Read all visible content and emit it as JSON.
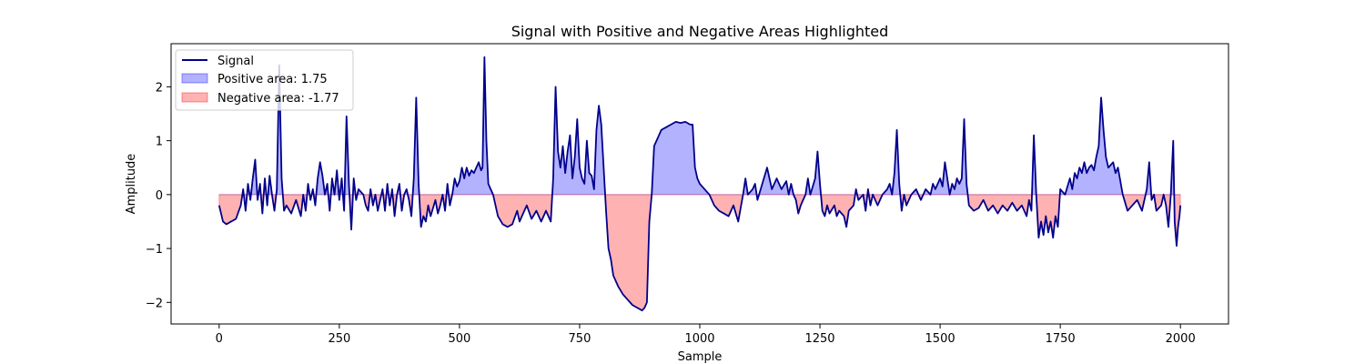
{
  "chart_data": {
    "type": "line",
    "title": "Signal with Positive and Negative Areas Highlighted",
    "xlabel": "Sample",
    "ylabel": "Amplitude",
    "xlim": [
      -100,
      2100
    ],
    "ylim": [
      -2.4,
      2.8
    ],
    "x_ticks": [
      0,
      250,
      500,
      750,
      1000,
      1250,
      1500,
      1750,
      2000
    ],
    "y_ticks": [
      -2,
      -1,
      0,
      1,
      2
    ],
    "grid": false,
    "legend_position": "top-left",
    "legend": [
      {
        "label": "Signal",
        "kind": "line",
        "color": "#00008b"
      },
      {
        "label": "Positive area: 1.75",
        "kind": "patch",
        "color": "#0000ff"
      },
      {
        "label": "Negative area: -1.77",
        "kind": "patch",
        "color": "#ff0000"
      }
    ],
    "series": [
      {
        "name": "Signal",
        "color": "#00008b",
        "points": [
          [
            0,
            -0.2
          ],
          [
            8,
            -0.5
          ],
          [
            15,
            -0.55
          ],
          [
            25,
            -0.5
          ],
          [
            35,
            -0.45
          ],
          [
            45,
            -0.2
          ],
          [
            50,
            0.1
          ],
          [
            55,
            -0.3
          ],
          [
            60,
            0.2
          ],
          [
            65,
            -0.1
          ],
          [
            70,
            0.3
          ],
          [
            75,
            0.65
          ],
          [
            80,
            -0.1
          ],
          [
            85,
            0.2
          ],
          [
            90,
            -0.35
          ],
          [
            95,
            0.3
          ],
          [
            100,
            -0.2
          ],
          [
            105,
            0.35
          ],
          [
            110,
            0.0
          ],
          [
            115,
            -0.3
          ],
          [
            120,
            0.1
          ],
          [
            125,
            2.4
          ],
          [
            130,
            0.3
          ],
          [
            135,
            -0.3
          ],
          [
            140,
            -0.2
          ],
          [
            150,
            -0.35
          ],
          [
            160,
            -0.1
          ],
          [
            170,
            -0.4
          ],
          [
            175,
            0.0
          ],
          [
            180,
            -0.3
          ],
          [
            185,
            0.2
          ],
          [
            190,
            -0.1
          ],
          [
            195,
            0.1
          ],
          [
            200,
            -0.2
          ],
          [
            205,
            0.3
          ],
          [
            210,
            0.6
          ],
          [
            215,
            0.35
          ],
          [
            220,
            0.0
          ],
          [
            225,
            0.2
          ],
          [
            230,
            -0.3
          ],
          [
            235,
            0.3
          ],
          [
            240,
            0.0
          ],
          [
            245,
            0.45
          ],
          [
            250,
            -0.1
          ],
          [
            255,
            0.3
          ],
          [
            260,
            -0.3
          ],
          [
            265,
            1.45
          ],
          [
            270,
            0.2
          ],
          [
            275,
            -0.65
          ],
          [
            280,
            0.3
          ],
          [
            285,
            -0.1
          ],
          [
            290,
            0.1
          ],
          [
            300,
            0.0
          ],
          [
            305,
            -0.2
          ],
          [
            310,
            -0.3
          ],
          [
            315,
            0.1
          ],
          [
            320,
            -0.2
          ],
          [
            325,
            0.0
          ],
          [
            330,
            -0.3
          ],
          [
            335,
            -0.1
          ],
          [
            340,
            0.1
          ],
          [
            345,
            -0.3
          ],
          [
            350,
            0.2
          ],
          [
            355,
            -0.2
          ],
          [
            360,
            0.1
          ],
          [
            365,
            -0.4
          ],
          [
            370,
            0.0
          ],
          [
            375,
            0.2
          ],
          [
            380,
            -0.3
          ],
          [
            385,
            0.0
          ],
          [
            390,
            0.1
          ],
          [
            395,
            -0.1
          ],
          [
            400,
            -0.4
          ],
          [
            405,
            0.3
          ],
          [
            410,
            1.8
          ],
          [
            415,
            0.2
          ],
          [
            420,
            -0.6
          ],
          [
            425,
            -0.4
          ],
          [
            430,
            -0.5
          ],
          [
            435,
            -0.2
          ],
          [
            440,
            -0.4
          ],
          [
            450,
            -0.1
          ],
          [
            455,
            -0.35
          ],
          [
            460,
            -0.2
          ],
          [
            465,
            0.0
          ],
          [
            470,
            -0.3
          ],
          [
            475,
            0.2
          ],
          [
            480,
            -0.2
          ],
          [
            485,
            0.0
          ],
          [
            490,
            0.3
          ],
          [
            495,
            0.15
          ],
          [
            500,
            0.25
          ],
          [
            505,
            0.5
          ],
          [
            510,
            0.3
          ],
          [
            515,
            0.5
          ],
          [
            520,
            0.35
          ],
          [
            525,
            0.45
          ],
          [
            530,
            0.4
          ],
          [
            535,
            0.5
          ],
          [
            540,
            0.6
          ],
          [
            545,
            0.45
          ],
          [
            548,
            0.5
          ],
          [
            552,
            2.55
          ],
          [
            556,
            1.0
          ],
          [
            560,
            0.2
          ],
          [
            570,
            0.0
          ],
          [
            580,
            -0.4
          ],
          [
            590,
            -0.55
          ],
          [
            600,
            -0.6
          ],
          [
            610,
            -0.55
          ],
          [
            620,
            -0.3
          ],
          [
            625,
            -0.5
          ],
          [
            630,
            -0.4
          ],
          [
            640,
            -0.2
          ],
          [
            650,
            -0.45
          ],
          [
            660,
            -0.3
          ],
          [
            670,
            -0.5
          ],
          [
            680,
            -0.3
          ],
          [
            690,
            -0.5
          ],
          [
            695,
            0.3
          ],
          [
            700,
            2.0
          ],
          [
            705,
            0.8
          ],
          [
            710,
            0.5
          ],
          [
            715,
            0.9
          ],
          [
            720,
            0.4
          ],
          [
            725,
            0.8
          ],
          [
            730,
            1.1
          ],
          [
            735,
            0.3
          ],
          [
            740,
            0.7
          ],
          [
            745,
            1.4
          ],
          [
            750,
            0.5
          ],
          [
            755,
            0.3
          ],
          [
            760,
            0.2
          ],
          [
            765,
            1.0
          ],
          [
            770,
            0.4
          ],
          [
            775,
            0.35
          ],
          [
            780,
            0.1
          ],
          [
            785,
            1.2
          ],
          [
            790,
            1.65
          ],
          [
            795,
            1.3
          ],
          [
            800,
            0.5
          ],
          [
            805,
            -0.3
          ],
          [
            810,
            -1.0
          ],
          [
            815,
            -1.2
          ],
          [
            820,
            -1.5
          ],
          [
            830,
            -1.7
          ],
          [
            840,
            -1.85
          ],
          [
            850,
            -1.95
          ],
          [
            860,
            -2.05
          ],
          [
            870,
            -2.1
          ],
          [
            880,
            -2.15
          ],
          [
            885,
            -2.1
          ],
          [
            890,
            -2.0
          ],
          [
            895,
            -0.5
          ],
          [
            900,
            0.0
          ],
          [
            905,
            0.9
          ],
          [
            910,
            1.0
          ],
          [
            915,
            1.1
          ],
          [
            920,
            1.2
          ],
          [
            930,
            1.25
          ],
          [
            940,
            1.3
          ],
          [
            950,
            1.35
          ],
          [
            960,
            1.33
          ],
          [
            970,
            1.35
          ],
          [
            980,
            1.3
          ],
          [
            985,
            1.3
          ],
          [
            990,
            0.5
          ],
          [
            995,
            0.3
          ],
          [
            1000,
            0.2
          ],
          [
            1010,
            0.1
          ],
          [
            1020,
            0.0
          ],
          [
            1030,
            -0.2
          ],
          [
            1040,
            -0.3
          ],
          [
            1050,
            -0.35
          ],
          [
            1060,
            -0.4
          ],
          [
            1065,
            -0.3
          ],
          [
            1070,
            -0.2
          ],
          [
            1080,
            -0.5
          ],
          [
            1090,
            0.0
          ],
          [
            1095,
            0.3
          ],
          [
            1100,
            0.0
          ],
          [
            1110,
            0.1
          ],
          [
            1115,
            0.2
          ],
          [
            1120,
            -0.1
          ],
          [
            1130,
            0.2
          ],
          [
            1140,
            0.5
          ],
          [
            1145,
            0.3
          ],
          [
            1150,
            0.1
          ],
          [
            1160,
            0.3
          ],
          [
            1170,
            0.1
          ],
          [
            1180,
            0.25
          ],
          [
            1185,
            0.0
          ],
          [
            1190,
            0.2
          ],
          [
            1195,
            0.0
          ],
          [
            1200,
            -0.1
          ],
          [
            1205,
            -0.35
          ],
          [
            1210,
            -0.2
          ],
          [
            1220,
            0.0
          ],
          [
            1225,
            0.3
          ],
          [
            1230,
            0.0
          ],
          [
            1240,
            0.3
          ],
          [
            1245,
            0.8
          ],
          [
            1250,
            0.2
          ],
          [
            1255,
            -0.3
          ],
          [
            1260,
            -0.4
          ],
          [
            1265,
            -0.2
          ],
          [
            1270,
            -0.35
          ],
          [
            1280,
            -0.2
          ],
          [
            1285,
            -0.4
          ],
          [
            1290,
            -0.3
          ],
          [
            1300,
            -0.4
          ],
          [
            1305,
            -0.6
          ],
          [
            1310,
            -0.3
          ],
          [
            1320,
            -0.2
          ],
          [
            1325,
            0.1
          ],
          [
            1330,
            -0.1
          ],
          [
            1340,
            0.0
          ],
          [
            1345,
            -0.3
          ],
          [
            1350,
            0.1
          ],
          [
            1355,
            -0.2
          ],
          [
            1360,
            0.0
          ],
          [
            1370,
            -0.2
          ],
          [
            1380,
            0.0
          ],
          [
            1390,
            0.1
          ],
          [
            1395,
            0.2
          ],
          [
            1400,
            0.0
          ],
          [
            1405,
            0.4
          ],
          [
            1410,
            1.2
          ],
          [
            1415,
            0.2
          ],
          [
            1420,
            -0.3
          ],
          [
            1425,
            0.0
          ],
          [
            1430,
            -0.2
          ],
          [
            1440,
            0.0
          ],
          [
            1450,
            0.1
          ],
          [
            1460,
            -0.1
          ],
          [
            1465,
            0.0
          ],
          [
            1470,
            0.1
          ],
          [
            1480,
            0.0
          ],
          [
            1485,
            0.2
          ],
          [
            1490,
            0.1
          ],
          [
            1500,
            0.3
          ],
          [
            1505,
            0.15
          ],
          [
            1510,
            0.6
          ],
          [
            1515,
            0.3
          ],
          [
            1520,
            0.0
          ],
          [
            1525,
            0.2
          ],
          [
            1530,
            0.1
          ],
          [
            1535,
            0.3
          ],
          [
            1540,
            0.2
          ],
          [
            1545,
            0.3
          ],
          [
            1550,
            1.4
          ],
          [
            1555,
            0.2
          ],
          [
            1560,
            -0.2
          ],
          [
            1570,
            -0.3
          ],
          [
            1580,
            -0.25
          ],
          [
            1590,
            -0.1
          ],
          [
            1600,
            -0.3
          ],
          [
            1610,
            -0.2
          ],
          [
            1620,
            -0.35
          ],
          [
            1630,
            -0.2
          ],
          [
            1640,
            -0.3
          ],
          [
            1650,
            -0.15
          ],
          [
            1660,
            -0.3
          ],
          [
            1670,
            -0.2
          ],
          [
            1680,
            -0.4
          ],
          [
            1685,
            -0.1
          ],
          [
            1690,
            -0.3
          ],
          [
            1695,
            1.1
          ],
          [
            1700,
            0.0
          ],
          [
            1705,
            -0.8
          ],
          [
            1710,
            -0.5
          ],
          [
            1715,
            -0.75
          ],
          [
            1720,
            -0.4
          ],
          [
            1725,
            -0.7
          ],
          [
            1730,
            -0.5
          ],
          [
            1735,
            -0.8
          ],
          [
            1740,
            -0.4
          ],
          [
            1745,
            -0.6
          ],
          [
            1750,
            0.1
          ],
          [
            1760,
            0.0
          ],
          [
            1770,
            0.3
          ],
          [
            1775,
            0.1
          ],
          [
            1780,
            0.4
          ],
          [
            1785,
            0.3
          ],
          [
            1790,
            0.5
          ],
          [
            1795,
            0.4
          ],
          [
            1800,
            0.6
          ],
          [
            1805,
            0.4
          ],
          [
            1810,
            0.5
          ],
          [
            1815,
            0.55
          ],
          [
            1820,
            0.45
          ],
          [
            1825,
            0.7
          ],
          [
            1830,
            0.9
          ],
          [
            1835,
            1.8
          ],
          [
            1840,
            1.2
          ],
          [
            1845,
            0.7
          ],
          [
            1850,
            0.5
          ],
          [
            1860,
            0.6
          ],
          [
            1865,
            0.4
          ],
          [
            1870,
            0.5
          ],
          [
            1880,
            0.0
          ],
          [
            1890,
            -0.3
          ],
          [
            1900,
            -0.2
          ],
          [
            1910,
            -0.1
          ],
          [
            1920,
            -0.3
          ],
          [
            1925,
            -0.1
          ],
          [
            1930,
            0.1
          ],
          [
            1935,
            0.6
          ],
          [
            1940,
            -0.1
          ],
          [
            1945,
            0.0
          ],
          [
            1950,
            -0.3
          ],
          [
            1960,
            -0.2
          ],
          [
            1965,
            0.0
          ],
          [
            1970,
            -0.2
          ],
          [
            1975,
            -0.6
          ],
          [
            1980,
            0.0
          ],
          [
            1985,
            1.0
          ],
          [
            1988,
            -0.5
          ],
          [
            1992,
            -0.95
          ],
          [
            1995,
            -0.6
          ],
          [
            1998,
            -0.4
          ],
          [
            2000,
            -0.2
          ]
        ]
      }
    ]
  }
}
